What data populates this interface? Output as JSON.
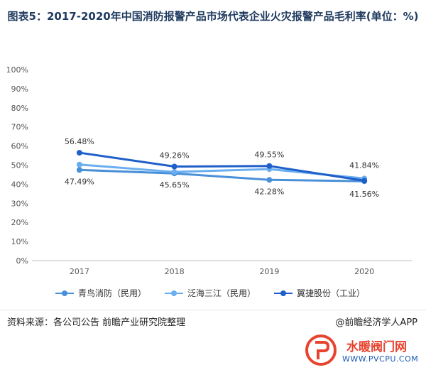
{
  "title": "图表5：2017-2020年中国消防报警产品市场代表企业火灾报警产品毛利率(单位：%)",
  "chart_data": {
    "type": "line",
    "categories": [
      "2017",
      "2018",
      "2019",
      "2020"
    ],
    "ylim": [
      0,
      100
    ],
    "yticks": [
      "0%",
      "10%",
      "20%",
      "30%",
      "40%",
      "50%",
      "60%",
      "70%",
      "80%",
      "90%",
      "100%"
    ],
    "series": [
      {
        "name": "青鸟消防（民用）",
        "values": [
          47.49,
          45.65,
          42.28,
          41.56
        ],
        "color": "#4a90d9",
        "labels": [
          "47.49%",
          "45.65%",
          "42.28%",
          "41.56%"
        ]
      },
      {
        "name": "泛海三江（民用）",
        "values": [
          50.3,
          46.4,
          47.9,
          43.0
        ],
        "color": "#6aaef0",
        "labels": [
          "",
          "",
          "",
          ""
        ]
      },
      {
        "name": "翼捷股份（工业）",
        "values": [
          56.48,
          49.26,
          49.55,
          41.84
        ],
        "color": "#1f5fc9",
        "labels": [
          "56.48%",
          "49.26%",
          "49.55%",
          "41.84%"
        ]
      }
    ],
    "grid": false,
    "legend_position": "bottom"
  },
  "footer": {
    "source": "资料来源：各公司公告 前瞻产业研究院整理",
    "credit": "@前瞻经济学人APP"
  },
  "logo": {
    "text": "水暖阀门网",
    "url": "WWW.PVCPU.COM",
    "color": "#e8432e"
  }
}
